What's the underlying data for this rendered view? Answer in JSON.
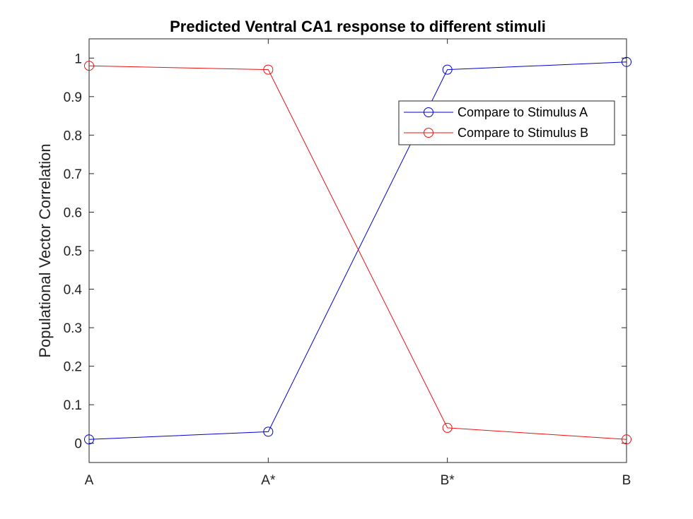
{
  "chart_data": {
    "type": "line",
    "title": "Predicted Ventral CA1 response to different stimuli",
    "xlabel": "",
    "ylabel": "Populational Vector Correlation",
    "categories": [
      "A",
      "A*",
      "B*",
      "B"
    ],
    "ylim": [
      -0.05,
      1.05
    ],
    "yticks": [
      0,
      0.1,
      0.2,
      0.3,
      0.4,
      0.5,
      0.6,
      0.7,
      0.8,
      0.9,
      1
    ],
    "grid": false,
    "legend_position": "top-right",
    "series": [
      {
        "name": "Compare to Stimulus A",
        "color": "#0000cc",
        "values": [
          0.01,
          0.03,
          0.97,
          0.99
        ]
      },
      {
        "name": "Compare to Stimulus B",
        "color": "#ee1111",
        "values": [
          0.98,
          0.97,
          0.04,
          0.01
        ]
      }
    ]
  }
}
